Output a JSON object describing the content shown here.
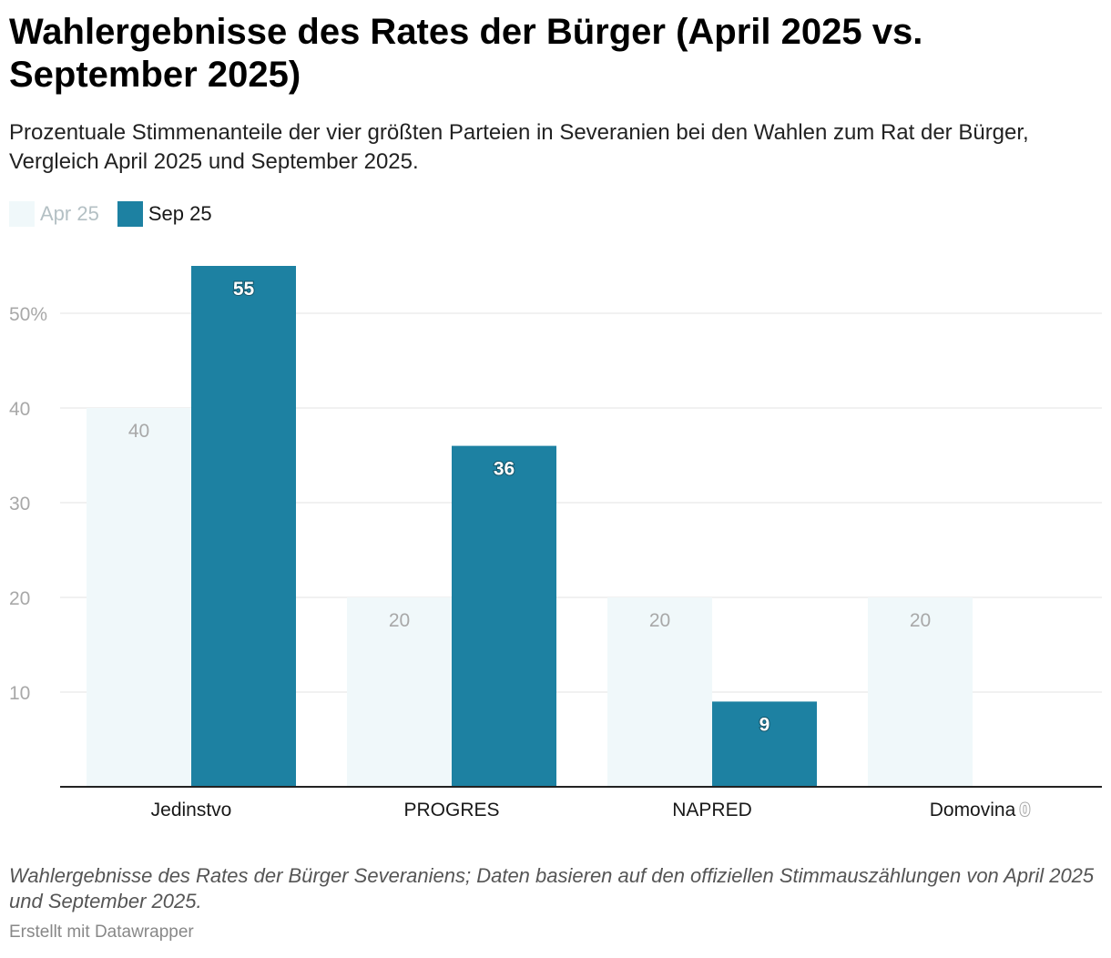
{
  "title": "Wahlergebnisse des Rates der Bürger (April 2025 vs. September 2025)",
  "subtitle": "Prozentuale Stimmenanteile der vier größten Parteien in Severanien bei den Wahlen zum Rat der Bürger, Vergleich April 2025 und September 2025.",
  "legend": [
    {
      "label": "Apr 25",
      "color": "#f0f8fa",
      "text_color": "#b4c0c4"
    },
    {
      "label": "Sep 25",
      "color": "#1d81a2",
      "text_color": "#181818"
    }
  ],
  "chart_data": {
    "type": "bar",
    "categories": [
      "Jedinstvo",
      "PROGRES",
      "NAPRED",
      "Domovina"
    ],
    "series": [
      {
        "name": "Apr 25",
        "values": [
          40,
          20,
          20,
          20
        ],
        "color": "#f0f8fa",
        "label_color": "#a8a8a8"
      },
      {
        "name": "Sep 25",
        "values": [
          55,
          36,
          9,
          0
        ],
        "color": "#1d81a2",
        "label_color": "#ffffff"
      }
    ],
    "yticks": [
      10,
      20,
      30,
      40,
      50
    ],
    "ytick_labels": [
      "10",
      "20",
      "30",
      "40",
      "50%"
    ],
    "ylim": [
      0,
      55
    ],
    "grid": true
  },
  "notes": "Wahlergebnisse des Rates der Bürger Severaniens; Daten basieren auf den offiziellen Stimmauszählungen von April 2025 und September 2025.",
  "credit": "Erstellt mit Datawrapper"
}
